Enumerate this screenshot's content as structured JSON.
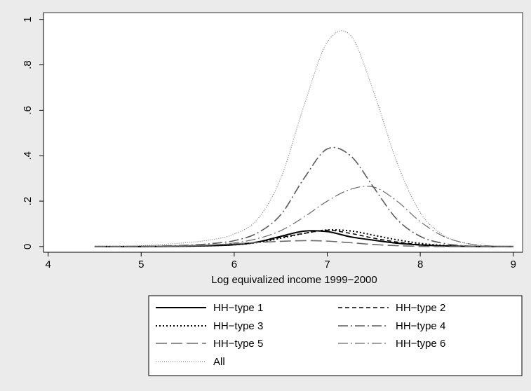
{
  "chart_data": {
    "type": "line",
    "xlabel": "Log equivalized income 1999−2000",
    "ylabel": "",
    "xlim": [
      3.95,
      9.1
    ],
    "ylim": [
      -0.025,
      1.03
    ],
    "xticks": [
      4,
      5,
      6,
      7,
      8,
      9
    ],
    "xtick_labels": [
      "4",
      "5",
      "6",
      "7",
      "8",
      "9"
    ],
    "yticks": [
      0,
      0.2,
      0.4,
      0.6,
      0.8,
      1
    ],
    "ytick_labels": [
      "0",
      ".2",
      ".4",
      ".6",
      ".8",
      "1"
    ],
    "grid": false,
    "legend_position": "bottom",
    "x": [
      4.5,
      4.75,
      5.0,
      5.25,
      5.5,
      5.75,
      6.0,
      6.25,
      6.5,
      6.75,
      7.0,
      7.25,
      7.5,
      7.75,
      8.0,
      8.25,
      8.5,
      8.75,
      9.0
    ],
    "series": [
      {
        "name": "HH−type 1",
        "style": "solid",
        "color": "#000000",
        "width": 2,
        "values": [
          0,
          0,
          0,
          0.001,
          0.002,
          0.004,
          0.008,
          0.02,
          0.045,
          0.068,
          0.066,
          0.043,
          0.028,
          0.015,
          0.007,
          0.003,
          0.001,
          0,
          0
        ]
      },
      {
        "name": "HH−type 2",
        "style": "dash",
        "color": "#000000",
        "width": 1.5,
        "values": [
          0,
          0,
          0,
          0.001,
          0.002,
          0.005,
          0.01,
          0.02,
          0.04,
          0.058,
          0.072,
          0.058,
          0.037,
          0.02,
          0.009,
          0.003,
          0.001,
          0,
          0
        ]
      },
      {
        "name": "HH−type 3",
        "style": "dot",
        "color": "#000000",
        "width": 2,
        "values": [
          0,
          0,
          0,
          0.001,
          0.002,
          0.004,
          0.008,
          0.018,
          0.037,
          0.058,
          0.073,
          0.069,
          0.05,
          0.03,
          0.014,
          0.005,
          0.001,
          0,
          0
        ]
      },
      {
        "name": "HH−type 4",
        "style": "dashdot",
        "color": "#5a5a5a",
        "width": 1.6,
        "values": [
          0,
          0,
          0.001,
          0.003,
          0.006,
          0.013,
          0.026,
          0.06,
          0.14,
          0.3,
          0.43,
          0.4,
          0.26,
          0.12,
          0.045,
          0.014,
          0.003,
          0.001,
          0
        ]
      },
      {
        "name": "HH−type 5",
        "style": "longdash",
        "color": "#6a6a6a",
        "width": 1.6,
        "values": [
          0,
          0,
          0.001,
          0.002,
          0.004,
          0.007,
          0.012,
          0.018,
          0.023,
          0.026,
          0.024,
          0.017,
          0.009,
          0.004,
          0.001,
          0,
          0,
          0,
          0
        ]
      },
      {
        "name": "HH−type 6",
        "style": "dashdot",
        "color": "#6a6a6a",
        "width": 1.2,
        "values": [
          0,
          0,
          0,
          0.001,
          0.003,
          0.007,
          0.016,
          0.035,
          0.07,
          0.13,
          0.2,
          0.252,
          0.262,
          0.2,
          0.11,
          0.045,
          0.014,
          0.003,
          0
        ]
      },
      {
        "name": "All",
        "style": "finedot",
        "color": "#7a7a7a",
        "width": 1.2,
        "values": [
          0,
          0.001,
          0.004,
          0.01,
          0.018,
          0.03,
          0.055,
          0.12,
          0.3,
          0.62,
          0.9,
          0.93,
          0.68,
          0.37,
          0.15,
          0.05,
          0.013,
          0.003,
          0.001
        ]
      }
    ]
  }
}
